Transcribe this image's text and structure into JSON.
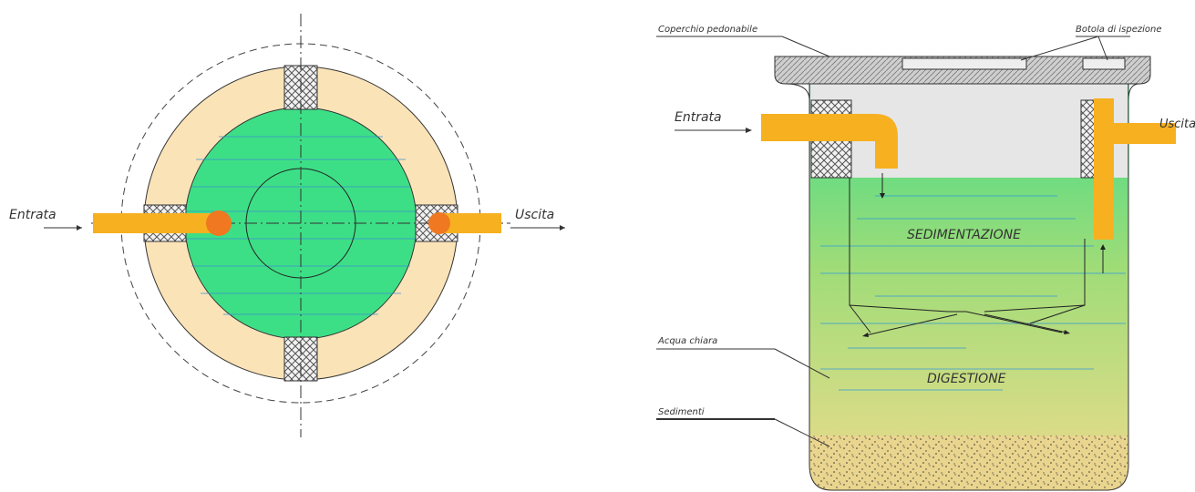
{
  "plan_view": {
    "labels": {
      "inlet": "Entrata",
      "outlet": "Uscita"
    }
  },
  "section_view": {
    "labels": {
      "cover": "Coperchio pedonabile",
      "hatch": "Botola di ispezione",
      "inlet": "Entrata",
      "outlet": "Uscita",
      "sedimentation": "SEDIMENTAZIONE",
      "digestion": "DIGESTIONE",
      "clear_water": "Acqua chiara",
      "sediments": "Sedimenti"
    }
  }
}
